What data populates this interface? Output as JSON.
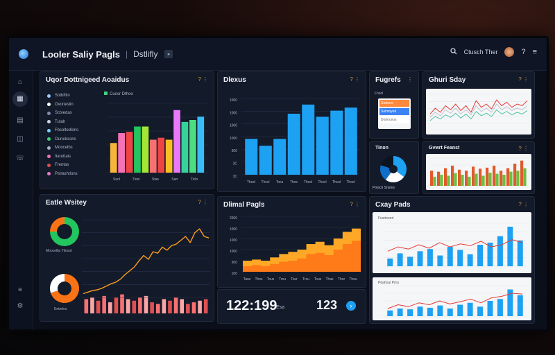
{
  "app": {
    "title": "Looler Saliy Pagls",
    "breadcrumb": "Dstlifly",
    "search_text": "Ctusch Ther"
  },
  "panels": {
    "p1": {
      "title": "Uqor Dottnigeed Aoaidus",
      "legend_title": "Cuosr Dthoo",
      "legend": [
        {
          "label": "Sotbiftin",
          "color": "#9ecbff"
        },
        {
          "label": "Ovorieslin",
          "color": "#ffffff"
        },
        {
          "label": "Sctvedas",
          "color": "#7f8ea8"
        },
        {
          "label": "Tutalr",
          "color": "#cfd6e2"
        },
        {
          "label": "Fbsoltedlons",
          "color": "#7dd3fc"
        },
        {
          "label": "Ounelcrans",
          "color": "#43d17a"
        },
        {
          "label": "Moocelbs",
          "color": "#a6b3c7"
        },
        {
          "label": "Itaruttais",
          "color": "#f472b6"
        },
        {
          "label": "Frentas",
          "color": "#e05050"
        },
        {
          "label": "Pslrashtions",
          "color": "#e879c9"
        }
      ],
      "xticks": [
        "Sunl",
        "Tlooi",
        "Stas",
        "Sarr",
        "Ticln"
      ]
    },
    "p2": {
      "title": "Dlexus",
      "yticks": [
        "1000",
        "1000",
        "1000",
        "1000",
        "300",
        "3C",
        "3C"
      ],
      "xticks": [
        "Thocl",
        "Thccl",
        "Tocu",
        "Thoc",
        "Thocl",
        "Thocl",
        "Thcol",
        "Thocl"
      ]
    },
    "p3": {
      "title": "Fugrefs",
      "sub": "Fnsol",
      "rows": [
        "Sorbors",
        "Soimnyed",
        "Dorinceos"
      ]
    },
    "p4": {
      "title": "Ghuri Sday"
    },
    "p5": {
      "title": "Tinon",
      "caption": "Potocti Srisms"
    },
    "p6": {
      "title": "Gvwrt Feanst"
    },
    "p7": {
      "title": "Eatle Wsitey",
      "donut1_label": "Moocelbs Tliooot",
      "donut2_label": "Enterles"
    },
    "p8": {
      "title": "Dlimal Pagls",
      "yticks": [
        "2000",
        "1000",
        "1000",
        "1000",
        "300",
        "100"
      ],
      "xticks": [
        "Taus",
        "Thos",
        "Tous",
        "Trou",
        "Tour",
        "Trou",
        "Tous",
        "Thas",
        "Thor",
        "Thou"
      ]
    },
    "p9": {
      "title": "Cxay Pads",
      "sub1": "Fesrtsond",
      "sub2": "Pdahoul Prns"
    }
  },
  "stats": {
    "value1": "122:199",
    "value1_unit": "Esa",
    "value2": "123"
  },
  "colors": {
    "accent": "#1da1f2",
    "orange": "#ff9f1a",
    "gold": "#c79a3a",
    "bg": "#0b0f1a"
  },
  "chart_data": [
    {
      "type": "bar",
      "title": "Uqor Dottnigeed Aoaidus",
      "values": [
        45,
        60,
        62,
        70,
        70,
        50,
        53,
        50,
        95,
        77,
        80,
        85
      ],
      "colors": [
        "#f5b43a",
        "#f472b6",
        "#ef4444",
        "#22c55e",
        "#a3e635",
        "#f87171",
        "#ef4444",
        "#fbbf24",
        "#e879f9",
        "#34d399",
        "#4ade80",
        "#38bdf8"
      ]
    },
    {
      "type": "bar",
      "title": "Dlexus",
      "categories": [
        "Thocl",
        "Thccl",
        "Tocu",
        "Thoc",
        "Thocl",
        "Thocl",
        "Thcol",
        "Thocl"
      ],
      "values": [
        47,
        38,
        47,
        80,
        92,
        76,
        84,
        88
      ],
      "ylim": [
        0,
        100
      ],
      "color": "#1da1f2"
    },
    {
      "type": "line",
      "title": "Ghuri Sday",
      "series": [
        {
          "values": [
            28,
            35,
            30,
            38,
            33,
            40,
            32,
            38,
            30,
            44,
            36,
            40,
            34,
            45,
            38,
            42,
            36,
            40,
            38,
            44
          ],
          "color": "#e53935"
        },
        {
          "values": [
            24,
            30,
            26,
            33,
            29,
            35,
            28,
            33,
            27,
            38,
            31,
            35,
            30,
            40,
            33,
            37,
            32,
            35,
            33,
            38
          ],
          "color": "#bfc4cc"
        },
        {
          "values": [
            20,
            25,
            22,
            27,
            24,
            29,
            23,
            28,
            22,
            31,
            26,
            29,
            25,
            33,
            28,
            31,
            27,
            30,
            28,
            32
          ],
          "color": "#4fc3a1"
        }
      ]
    },
    {
      "type": "pie",
      "title": "Tinon",
      "values": [
        35,
        25,
        20,
        20
      ],
      "colors": [
        "#1da1f2",
        "#ffffff",
        "#0e6ec8",
        "#0b1220"
      ]
    },
    {
      "type": "bar",
      "title": "Gvwrt Feanst",
      "series": [
        {
          "values": [
            30,
            28,
            35,
            40,
            32,
            30,
            38,
            34,
            36,
            40,
            30,
            35,
            44,
            50
          ],
          "color": "#e05a2b"
        },
        {
          "values": [
            18,
            22,
            20,
            25,
            22,
            18,
            24,
            20,
            26,
            24,
            22,
            28,
            30,
            35
          ],
          "color": "#6cbf3f"
        }
      ]
    },
    {
      "type": "pie",
      "title": "Eatle Wsitey",
      "values": [
        75,
        25
      ],
      "colors": [
        "#22c55e",
        "#f97316"
      ]
    },
    {
      "type": "line",
      "title": "Eatle Wsitey",
      "values": [
        5,
        7,
        9,
        10,
        12,
        15,
        18,
        20,
        24,
        30,
        35,
        40,
        48,
        55,
        50,
        60,
        58,
        66,
        62,
        68,
        70,
        75,
        80,
        72,
        85,
        90,
        80,
        78
      ],
      "color": "#ff9f1a"
    },
    {
      "type": "bar",
      "title": "Eatle Wsitey",
      "values": [
        18,
        20,
        16,
        22,
        14,
        20,
        24,
        18,
        16,
        20,
        22,
        14,
        12,
        18,
        16,
        20,
        18,
        12,
        14,
        16,
        18
      ],
      "color": "#f87171"
    },
    {
      "type": "pie",
      "title": "Eatle Wsitey",
      "values": [
        70,
        30
      ],
      "colors": [
        "#f97316",
        "#ffffff"
      ]
    },
    {
      "type": "area",
      "title": "Dlimal Pagls",
      "values": [
        20,
        22,
        20,
        26,
        32,
        36,
        40,
        50,
        54,
        48,
        60,
        72,
        78
      ],
      "values2": [
        10,
        12,
        10,
        14,
        18,
        20,
        24,
        32,
        34,
        30,
        40,
        50,
        56
      ],
      "ylim": [
        0,
        100
      ],
      "colors": [
        "#ffa726",
        "#ff7a18"
      ]
    },
    {
      "type": "bar",
      "title": "Cxay Pads",
      "values": [
        18,
        30,
        22,
        35,
        40,
        25,
        45,
        38,
        28,
        50,
        55,
        70,
        92,
        60
      ],
      "line": [
        35,
        45,
        40,
        50,
        42,
        55,
        45,
        52,
        48,
        58,
        45,
        50,
        62,
        55
      ],
      "color": "#1da1f2"
    },
    {
      "type": "bar",
      "title": "Cxay Pads",
      "values": [
        15,
        20,
        18,
        25,
        22,
        28,
        20,
        30,
        35,
        25,
        40,
        45,
        70,
        55
      ],
      "line": [
        20,
        30,
        25,
        35,
        30,
        40,
        32,
        38,
        45,
        35,
        48,
        52,
        60,
        58
      ],
      "color": "#1da1f2"
    }
  ]
}
